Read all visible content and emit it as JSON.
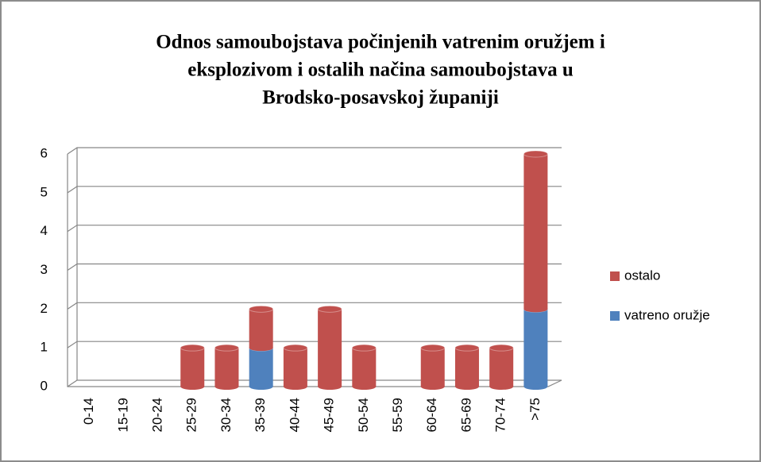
{
  "chart_data": {
    "type": "bar",
    "stacked": true,
    "title": [
      "Odnos samoubojstava počinjenih vatrenim oružjem i",
      "eksplozivom i ostalih načina samoubojstava u",
      "Brodsko-posavskoj županiji"
    ],
    "categories": [
      "0-14",
      "15-19",
      "20-24",
      "25-29",
      "30-34",
      "35-39",
      "40-44",
      "45-49",
      "50-54",
      "55-59",
      "60-64",
      "65-69",
      "70-74",
      ">75"
    ],
    "series": [
      {
        "name": "vatreno oružje",
        "color": "#4f81bd",
        "values": [
          0,
          0,
          0,
          0,
          0,
          1,
          0,
          0,
          0,
          0,
          0,
          0,
          0,
          2
        ]
      },
      {
        "name": "ostalo",
        "color": "#c0504d",
        "values": [
          0,
          0,
          0,
          1,
          1,
          1,
          1,
          2,
          1,
          0,
          1,
          1,
          1,
          4
        ]
      }
    ],
    "ylim": [
      0,
      6
    ],
    "yticks": [
      0,
      1,
      2,
      3,
      4,
      5,
      6
    ],
    "grid": true,
    "legend": "right"
  }
}
